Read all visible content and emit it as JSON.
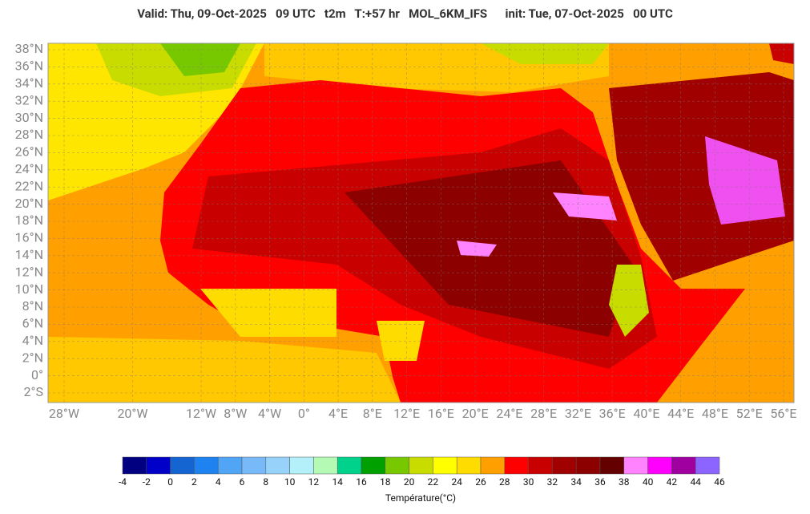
{
  "header": {
    "valid": "Valid: Thu, 09-Oct-2025   09 UTC   t2m   T:+57 hr   MOL_6KM_IFS",
    "init": "init: Tue, 07-Oct-2025   00 UTC"
  },
  "map": {
    "lat_ticks": [
      {
        "value": 38,
        "label": "38°N"
      },
      {
        "value": 36,
        "label": "36°N"
      },
      {
        "value": 34,
        "label": "34°N"
      },
      {
        "value": 32,
        "label": "32°N"
      },
      {
        "value": 30,
        "label": "30°N"
      },
      {
        "value": 28,
        "label": "28°N"
      },
      {
        "value": 26,
        "label": "26°N"
      },
      {
        "value": 24,
        "label": "24°N"
      },
      {
        "value": 22,
        "label": "22°N"
      },
      {
        "value": 20,
        "label": "20°N"
      },
      {
        "value": 18,
        "label": "18°N"
      },
      {
        "value": 16,
        "label": "16°N"
      },
      {
        "value": 14,
        "label": "14°N"
      },
      {
        "value": 12,
        "label": "12°N"
      },
      {
        "value": 10,
        "label": "10°N"
      },
      {
        "value": 8,
        "label": "8°N"
      },
      {
        "value": 6,
        "label": "6°N"
      },
      {
        "value": 4,
        "label": "4°N"
      },
      {
        "value": 2,
        "label": "2°N"
      },
      {
        "value": 0,
        "label": "0°"
      },
      {
        "value": -2,
        "label": "2°S"
      }
    ],
    "lon_ticks": [
      {
        "value": -28,
        "label": "28°W"
      },
      {
        "value": -20,
        "label": "20°W"
      },
      {
        "value": -12,
        "label": "12°W"
      },
      {
        "value": -8,
        "label": "8°W"
      },
      {
        "value": -4,
        "label": "4°W"
      },
      {
        "value": 0,
        "label": "0°"
      },
      {
        "value": 4,
        "label": "4°E"
      },
      {
        "value": 8,
        "label": "8°E"
      },
      {
        "value": 12,
        "label": "12°E"
      },
      {
        "value": 16,
        "label": "16°E"
      },
      {
        "value": 20,
        "label": "20°E"
      },
      {
        "value": 24,
        "label": "24°E"
      },
      {
        "value": 28,
        "label": "28°E"
      },
      {
        "value": 32,
        "label": "32°E"
      },
      {
        "value": 36,
        "label": "36°E"
      },
      {
        "value": 40,
        "label": "40°E"
      },
      {
        "value": 44,
        "label": "44°E"
      },
      {
        "value": 48,
        "label": "48°E"
      },
      {
        "value": 52,
        "label": "52°E"
      },
      {
        "value": 56,
        "label": "56°E"
      }
    ]
  },
  "colorbar": {
    "ticks": [
      -4,
      -2,
      0,
      2,
      4,
      6,
      8,
      10,
      12,
      14,
      16,
      18,
      20,
      22,
      24,
      26,
      28,
      30,
      32,
      34,
      36,
      38,
      40,
      42,
      44,
      46
    ],
    "colors": [
      "#000080",
      "#0000c8",
      "#1464d2",
      "#1e82f0",
      "#50a5f5",
      "#78b9fa",
      "#96d2fa",
      "#b4f0fa",
      "#b4fab4",
      "#00d28c",
      "#00a000",
      "#78c800",
      "#c8dc00",
      "#ffff00",
      "#ffdc00",
      "#ffa000",
      "#ff0000",
      "#c80000",
      "#a00000",
      "#8c0000",
      "#640000",
      "#ff82ff",
      "#ff00ff",
      "#a000a0",
      "#8c64ff"
    ],
    "label": "Température(°C)"
  }
}
